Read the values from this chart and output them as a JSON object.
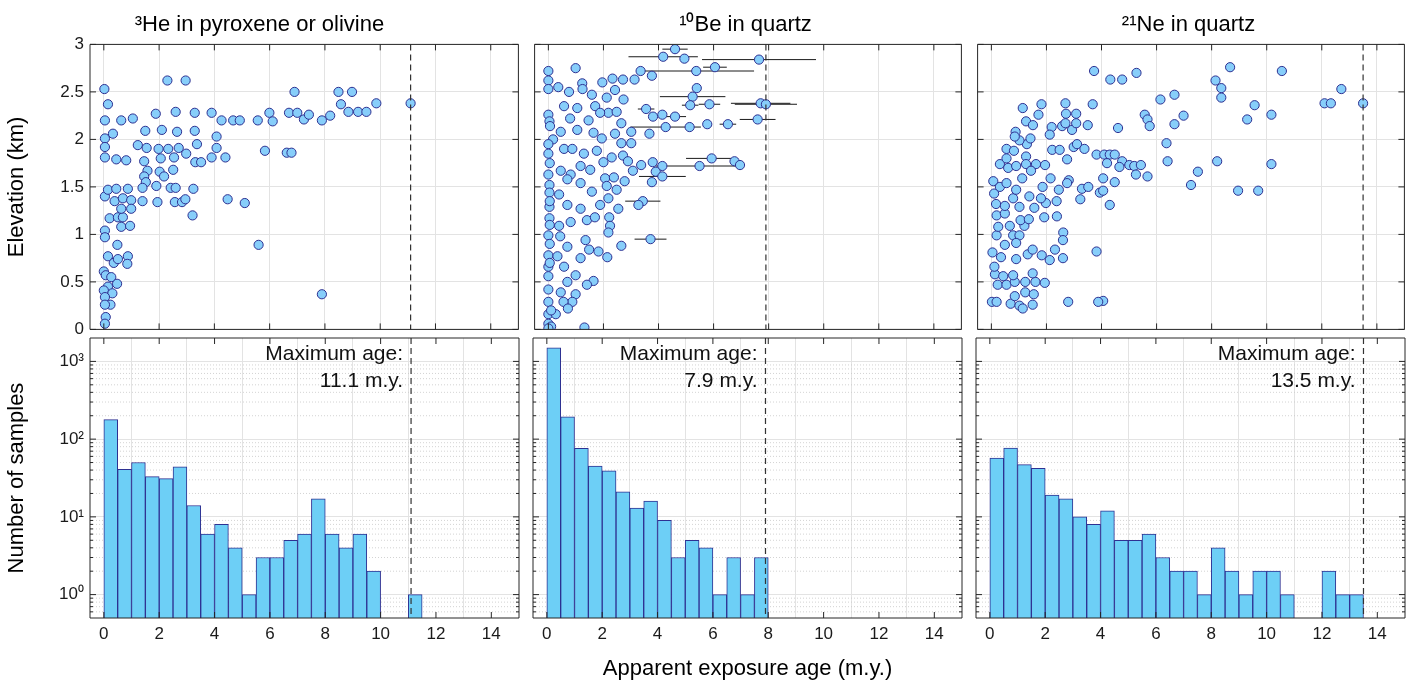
{
  "chart_data": [
    {
      "type": "scatter",
      "title": "³He in pyroxene or olivine",
      "ylabel": "Elevation (km)",
      "color": "#87cefa",
      "marker": "circle",
      "grid": true,
      "tick_labels": "y",
      "xlim": [
        -0.5,
        15
      ],
      "xticks": [
        0,
        2,
        4,
        6,
        8,
        10,
        12,
        14
      ],
      "ylim": [
        0,
        3
      ],
      "yticks": [
        0,
        0.5,
        1,
        1.5,
        2,
        2.5,
        3
      ],
      "ref_lines": [
        {
          "axis": "x",
          "value": 11.1,
          "line_style": "dashed"
        }
      ],
      "x": [
        2.3,
        2.96,
        6.9,
        8.49,
        8.98,
        9.86,
        11.1,
        8.58,
        0.02,
        0.15,
        0.04,
        0.63,
        1.05,
        1.88,
        2.6,
        3.29,
        3.9,
        4.26,
        4.68,
        4.92,
        5.57,
        5.99,
        6.11,
        6.7,
        7,
        7.24,
        7.42,
        7.89,
        8.19,
        8.85,
        9.2,
        9.5,
        0.04,
        0.33,
        1.5,
        2.1,
        2.65,
        3.29,
        4.08,
        4.08,
        0.04,
        0.04,
        0.45,
        0.81,
        1.23,
        1.55,
        1.98,
        2.33,
        2.71,
        3.37,
        3.31,
        3.52,
        3.9,
        4.4,
        5.83,
        6.62,
        6.79,
        1.46,
        2.06,
        2.54,
        2.98,
        1.58,
        2.02,
        2.51,
        2.18,
        1.46,
        1.52,
        1.4,
        1.9,
        2.42,
        2.6,
        3.24,
        0.04,
        0.15,
        0.45,
        0.87,
        0.39,
        0.69,
        0.99,
        1.4,
        1.94,
        2.57,
        2.83,
        2.95,
        4.48,
        5.1,
        3.21,
        0.21,
        0.51,
        0.69,
        0.63,
        0.95,
        0.63,
        0.99,
        0.04,
        0.04,
        5.6,
        0.49,
        0.15,
        0.36,
        0.51,
        0.87,
        0.85,
        0,
        0.07,
        0.27,
        0.48,
        0.15,
        0,
        0.31,
        0.04,
        0.24,
        0.04,
        0.07,
        0.04,
        7.89
      ],
      "values": [
        2.62,
        2.62,
        2.5,
        2.5,
        2.5,
        2.38,
        2.38,
        2.37,
        2.53,
        2.37,
        2.2,
        2.2,
        2.22,
        2.27,
        2.29,
        2.28,
        2.28,
        2.2,
        2.2,
        2.2,
        2.2,
        2.28,
        2.19,
        2.28,
        2.28,
        2.21,
        2.26,
        2.2,
        2.25,
        2.29,
        2.29,
        2.29,
        2.01,
        2.06,
        2.09,
        2.1,
        2.08,
        2.09,
        2.03,
        1.91,
        1.92,
        1.81,
        1.79,
        1.78,
        1.94,
        1.91,
        1.9,
        1.9,
        1.91,
        1.95,
        1.76,
        1.76,
        1.81,
        1.81,
        1.88,
        1.86,
        1.86,
        1.77,
        1.8,
        1.81,
        1.85,
        1.67,
        1.66,
        1.68,
        1.61,
        1.61,
        1.55,
        1.49,
        1.51,
        1.49,
        1.49,
        1.48,
        1.4,
        1.47,
        1.48,
        1.48,
        1.35,
        1.38,
        1.36,
        1.35,
        1.34,
        1.34,
        1.34,
        1.37,
        1.37,
        1.33,
        1.2,
        1.17,
        1.18,
        1.18,
        1.08,
        1.09,
        1.27,
        1.27,
        1.04,
        0.97,
        0.89,
        0.89,
        0.77,
        0.7,
        0.74,
        0.77,
        0.69,
        0.61,
        0.57,
        0.55,
        0.48,
        0.45,
        0.41,
        0.38,
        0.34,
        0.26,
        0.26,
        0.13,
        0.06,
        0.37
      ]
    },
    {
      "type": "scatter",
      "title": "¹⁰Be in quartz",
      "color": "#87cefa",
      "marker": "circle",
      "grid": true,
      "tick_labels": false,
      "xlim": [
        -0.5,
        15
      ],
      "xticks": [
        0,
        2,
        4,
        6,
        8,
        10,
        12,
        14
      ],
      "ylim": [
        0,
        3
      ],
      "yticks": [
        0,
        0.5,
        1,
        1.5,
        2,
        2.5,
        3
      ],
      "ref_lines": [
        {
          "axis": "x",
          "value": 7.9,
          "line_style": "dashed"
        }
      ],
      "x": [
        4.6,
        4.17,
        4.94,
        7.65,
        6.05,
        5.37,
        3.35,
        3.76,
        5.39,
        5.24,
        5.85,
        5.15,
        7.71,
        7.9,
        7.6,
        6.52,
        5.77,
        5.13,
        4.6,
        4.14,
        3.55,
        3.8,
        4.26,
        3.67,
        5.93,
        6.76,
        6.96,
        5.49,
        3.79,
        4.14,
        3.9,
        4.14,
        3.76,
        3.43,
        3.27,
        3.71,
        2.65,
        1.31,
        0,
        0,
        0,
        0.99,
        0.36,
        0.75,
        1.23,
        1.24,
        1.96,
        2.33,
        2.71,
        3.13,
        2.42,
        1.58,
        2.12,
        2.73,
        0.57,
        1.05,
        1.7,
        2.18,
        2.48,
        0,
        0.04,
        0.06,
        0.79,
        1.46,
        1.88,
        0.45,
        1.05,
        1.64,
        2.42,
        2.65,
        3.01,
        1.94,
        2.65,
        3.01,
        0.17,
        0,
        0.57,
        0.87,
        0,
        1.29,
        1.76,
        2.3,
        2.71,
        2.89,
        3.37,
        2,
        1.17,
        0.45,
        0,
        0.81,
        1.52,
        2.06,
        2.38,
        2.77,
        3.07,
        0.04,
        0.69,
        1.17,
        1.58,
        2.12,
        2.48,
        2.18,
        2.54,
        0.04,
        0.39,
        0.04,
        0.69,
        1.17,
        1.88,
        1.4,
        1.69,
        2.21,
        2.24,
        2.18,
        0.04,
        0.39,
        0.81,
        0,
        0.43,
        1.35,
        0.69,
        1.48,
        1.82,
        2.14,
        1.17,
        0,
        0.33,
        0.57,
        0,
        0.99,
        1.64,
        1.4,
        0,
        0.69,
        0,
        0.45,
        0.99,
        0.87,
        0.55,
        0.71,
        0,
        0,
        0.27,
        0,
        0.1,
        0,
        0.05,
        0.05,
        0.05,
        0.05,
        0.1,
        0.05
      ],
      "values": [
        2.95,
        2.87,
        2.85,
        2.84,
        2.76,
        2.72,
        2.72,
        2.67,
        2.54,
        2.45,
        2.37,
        2.36,
        2.38,
        2.37,
        2.21,
        2.16,
        2.16,
        2.13,
        2.24,
        2.26,
        2.32,
        2.24,
        2.13,
        2.06,
        1.8,
        1.77,
        1.73,
        1.72,
        1.76,
        1.72,
        1.66,
        1.61,
        1.55,
        1.35,
        1.31,
        0.95,
        0.88,
        0.02,
        2.72,
        2.62,
        2.53,
        2.75,
        2.55,
        2.5,
        2.59,
        2.53,
        2.6,
        2.64,
        2.63,
        2.63,
        2.52,
        2.47,
        2.44,
        2.42,
        2.35,
        2.33,
        2.35,
        2.28,
        2.29,
        2.26,
        2.19,
        2.14,
        2.22,
        2.2,
        2.28,
        2.08,
        2.1,
        2.07,
        2.06,
        2.17,
        2.08,
        2.01,
        1.96,
        1.96,
        2,
        1.95,
        1.9,
        1.9,
        1.85,
        1.85,
        1.88,
        1.81,
        1.83,
        1.77,
        1.73,
        1.76,
        1.72,
        1.67,
        1.63,
        1.63,
        1.68,
        1.59,
        1.6,
        1.56,
        1.67,
        1.52,
        1.58,
        1.54,
        1.45,
        1.51,
        1.47,
        1.38,
        1.27,
        1.44,
        1.42,
        1.29,
        1.31,
        1.27,
        1.31,
        1.15,
        1.18,
        1.18,
        1.09,
        1.02,
        1.17,
        1.09,
        1.13,
        0.99,
        0.98,
        0.94,
        0.87,
        0.84,
        0.82,
        0.76,
        0.75,
        0.78,
        0.77,
        0.66,
        0.66,
        0.57,
        0.51,
        0.47,
        0.56,
        0.5,
        0.42,
        0.39,
        0.37,
        0.29,
        0.29,
        0.22,
        0.29,
        0.16,
        0.16,
        0.06,
        0.03,
        0.01,
        0.9,
        1.1,
        1.35,
        1.75,
        0.2,
        0.7
      ],
      "xerrors": [
        0.46,
        1.26,
        null,
        2.07,
        0.43,
        2.1,
        null,
        null,
        null,
        1.19,
        0.39,
        0.3,
        1.08,
        1.13,
        0.65,
        0.3,
        null,
        null,
        0.4,
        null,
        0.3,
        null,
        1.28,
        null,
        0.93,
        null,
        null,
        1.6,
        null,
        null,
        null,
        0.85,
        null,
        0.64,
        null,
        0.58,
        null,
        null,
        null,
        null,
        null,
        null,
        null,
        null,
        null,
        null,
        null,
        null,
        null,
        null,
        null,
        null,
        null,
        null,
        null,
        null,
        null,
        null,
        null,
        null,
        null,
        null,
        null,
        null,
        null,
        null,
        null,
        null,
        null,
        null,
        null,
        null,
        null,
        null,
        null,
        null,
        null,
        null,
        null,
        null,
        null,
        null,
        null,
        null,
        null,
        null,
        null,
        null,
        null,
        null,
        null,
        null,
        null,
        null,
        null,
        null,
        null,
        null,
        null,
        null,
        null,
        null,
        null,
        null,
        null,
        null,
        null,
        null,
        null,
        null,
        null,
        null,
        null,
        null,
        null,
        null,
        null,
        null,
        null,
        null,
        null,
        null,
        null,
        null,
        null,
        null,
        null,
        null,
        null,
        null,
        null,
        null,
        null,
        null,
        null,
        null,
        null,
        null,
        null,
        null,
        null,
        null,
        null,
        null,
        null,
        null,
        null,
        null,
        null,
        null,
        null,
        null
      ]
    },
    {
      "type": "scatter",
      "title": "²¹Ne in quartz",
      "color": "#87cefa",
      "marker": "circle",
      "grid": true,
      "tick_labels": false,
      "xlim": [
        -0.5,
        15
      ],
      "xticks": [
        0,
        2,
        4,
        6,
        8,
        10,
        12,
        14
      ],
      "ylim": [
        0,
        3
      ],
      "yticks": [
        0,
        0.5,
        1,
        1.5,
        2,
        2.5,
        3
      ],
      "ref_lines": [
        {
          "axis": "x",
          "value": 13.5,
          "line_style": "dashed"
        }
      ],
      "x": [
        3.73,
        4.32,
        4.75,
        5.27,
        8.67,
        10.55,
        8.14,
        8.35,
        8.35,
        6.65,
        6.14,
        12.71,
        12.1,
        12.33,
        13.5,
        9.56,
        10.17,
        9.29,
        6.98,
        6.65,
        5.57,
        5.67,
        5.75,
        4.6,
        6.36,
        6.4,
        8.2,
        10.17,
        7.5,
        7.25,
        8.96,
        9.69,
        3.82,
        4.06,
        3.88,
        2.79,
        0.02,
        0.19,
        0.7,
        1.02,
        1.14,
        1.5,
        0.85,
        1.23,
        1.54,
        0.23,
        0.55,
        0.85,
        1.23,
        1.6,
        1.94,
        0.13,
        0.43,
        0.79,
        1.5,
        0.04,
        0.35,
        0.11,
        0.9,
        1.32,
        1.5,
        1.83,
        2.12,
        2.31,
        2.6,
        2.61,
        2.6,
        0.19,
        0.49,
        0.79,
        1.02,
        0.9,
        0.25,
        0.67,
        1.2,
        0.19,
        0.49,
        1.06,
        1.36,
        1.92,
        2.38,
        0.17,
        0.49,
        1.02,
        1.56,
        1.98,
        2.37,
        4.3,
        0.07,
        0.1,
        0.31,
        0.55,
        0.79,
        0.9,
        1.38,
        1.8,
        1.86,
        2.15,
        2.45,
        2.81,
        3.23,
        3.29,
        3.52,
        3.94,
        4.06,
        4.48,
        4.06,
        0.31,
        0.55,
        0.61,
        0.9,
        1.26,
        1.12,
        1.62,
        1.95,
        0.55,
        0.82,
        1.26,
        1.44,
        1.29,
        1.42,
        1.02,
        0.88,
        0.85,
        1.26,
        1.51,
        1.14,
        1.71,
        1.82,
        2.19,
        2.21,
        2.48,
        2.12,
        2.57,
        2.69,
        2.69,
        2.71,
        2.93,
        3.08,
        3.08,
        3.5,
        3.68,
        2.99,
        3.11,
        3.38,
        3.82,
        4.1,
        4.3,
        4.48,
        4.2,
        4.75,
        4.65,
        5.01,
        5.19,
        5.43,
        5.25,
        5.67,
        2.75,
        2.75
      ],
      "values": [
        2.72,
        2.63,
        2.63,
        2.7,
        2.76,
        2.72,
        2.62,
        2.54,
        2.44,
        2.47,
        2.42,
        2.53,
        2.38,
        2.38,
        2.38,
        2.36,
        2.26,
        2.21,
        2.25,
        2.16,
        2.26,
        2.21,
        2.14,
        2.12,
        1.96,
        1.77,
        1.77,
        1.74,
        1.66,
        1.52,
        1.46,
        1.46,
        0.82,
        0.3,
        0.29,
        0.29,
        0.29,
        0.29,
        0.27,
        0.25,
        0.22,
        0.26,
        0.35,
        0.39,
        0.37,
        0.47,
        0.47,
        0.5,
        0.5,
        0.5,
        0.49,
        0.58,
        0.56,
        0.57,
        0.59,
        0.81,
        0.76,
        0.66,
        0.74,
        0.79,
        0.84,
        0.78,
        0.73,
        0.84,
        0.75,
        1.02,
        0.94,
        0.99,
        0.89,
        0.99,
        0.99,
        0.91,
        1.08,
        1.09,
        1.09,
        1.2,
        1.22,
        1.15,
        1.16,
        1.18,
        1.19,
        1.32,
        1.3,
        1.29,
        1.28,
        1.33,
        1.35,
        1.31,
        1.56,
        1.43,
        1.5,
        1.54,
        1.38,
        1.47,
        1.4,
        1.38,
        1.5,
        1.59,
        1.47,
        1.57,
        1.37,
        1.48,
        1.5,
        1.44,
        1.46,
        1.55,
        1.59,
        1.74,
        1.8,
        1.7,
        1.72,
        1.82,
        1.59,
        1.74,
        1.73,
        1.9,
        1.88,
        1.74,
        1.67,
        1.95,
        2.01,
        1.99,
        2.08,
        2.03,
        2.19,
        2.15,
        2.33,
        2.26,
        2.37,
        2.13,
        1.89,
        1.89,
        2.05,
        2.14,
        2.17,
        2.38,
        2.27,
        2.1,
        2.27,
        2.17,
        2.15,
        2.37,
        1.92,
        1.95,
        1.9,
        1.84,
        1.84,
        1.84,
        1.84,
        1.75,
        1.77,
        1.71,
        1.73,
        1.72,
        1.73,
        1.63,
        1.61,
        1.79,
        1.54
      ]
    },
    {
      "type": "histogram",
      "ylabel": "Number of samples",
      "color": "#6dcff6",
      "grid": true,
      "log": true,
      "xlim": [
        -0.5,
        15
      ],
      "xticks": [
        0,
        2,
        4,
        6,
        8,
        10,
        12,
        14
      ],
      "ylim": [
        0.5,
        2000
      ],
      "yticks": [
        {
          "value": 0.6,
          "label": null
        },
        {
          "value": 0.7,
          "label": null
        },
        {
          "value": 0.8,
          "label": null
        },
        {
          "value": 0.9,
          "label": null
        },
        {
          "value": 1,
          "label": "10⁰"
        },
        {
          "value": 2,
          "label": null
        },
        {
          "value": 3,
          "label": null
        },
        {
          "value": 4,
          "label": null
        },
        {
          "value": 5,
          "label": null
        },
        {
          "value": 6,
          "label": null
        },
        {
          "value": 7,
          "label": null
        },
        {
          "value": 8,
          "label": null
        },
        {
          "value": 9,
          "label": null
        },
        {
          "value": 10,
          "label": "10¹"
        },
        {
          "value": 20,
          "label": null
        },
        {
          "value": 30,
          "label": null
        },
        {
          "value": 40,
          "label": null
        },
        {
          "value": 50,
          "label": null
        },
        {
          "value": 60,
          "label": null
        },
        {
          "value": 70,
          "label": null
        },
        {
          "value": 80,
          "label": null
        },
        {
          "value": 90,
          "label": null
        },
        {
          "value": 100,
          "label": "10²"
        },
        {
          "value": 200,
          "label": null
        },
        {
          "value": 300,
          "label": null
        },
        {
          "value": 400,
          "label": null
        },
        {
          "value": 500,
          "label": null
        },
        {
          "value": 600,
          "label": null
        },
        {
          "value": 700,
          "label": null
        },
        {
          "value": 800,
          "label": null
        },
        {
          "value": 900,
          "label": null
        },
        {
          "value": 1000,
          "label": "10³"
        }
      ],
      "ref_lines": [
        {
          "axis": "x",
          "value": 11.1,
          "line_style": "dashed",
          "label": "Maximum age:\n11.1 m.y."
        }
      ],
      "bins": [
        0,
        0.5,
        1,
        1.5,
        2,
        2.5,
        3,
        3.5,
        4,
        4.5,
        5,
        5.5,
        6,
        6.5,
        7,
        7.5,
        8,
        8.5,
        9,
        9.5,
        10,
        10.5,
        11,
        11.5
      ],
      "values": [
        178,
        41,
        50,
        33,
        31,
        44,
        14,
        6,
        8,
        4,
        1,
        3,
        3,
        5,
        6,
        17,
        6,
        4,
        6,
        2,
        null,
        null,
        1
      ]
    },
    {
      "type": "histogram",
      "xlabel": "Apparent exposure age (m.y.)",
      "color": "#6dcff6",
      "grid": true,
      "log": true,
      "tick_labels": "x",
      "xlim": [
        -0.5,
        15
      ],
      "xticks": [
        0,
        2,
        4,
        6,
        8,
        10,
        12,
        14
      ],
      "ylim": [
        0.5,
        2000
      ],
      "yticks": [
        {
          "value": 0.6,
          "label": null
        },
        {
          "value": 0.7,
          "label": null
        },
        {
          "value": 0.8,
          "label": null
        },
        {
          "value": 0.9,
          "label": null
        },
        {
          "value": 1,
          "label": null
        },
        {
          "value": 2,
          "label": null
        },
        {
          "value": 3,
          "label": null
        },
        {
          "value": 4,
          "label": null
        },
        {
          "value": 5,
          "label": null
        },
        {
          "value": 6,
          "label": null
        },
        {
          "value": 7,
          "label": null
        },
        {
          "value": 8,
          "label": null
        },
        {
          "value": 9,
          "label": null
        },
        {
          "value": 10,
          "label": null
        },
        {
          "value": 20,
          "label": null
        },
        {
          "value": 30,
          "label": null
        },
        {
          "value": 40,
          "label": null
        },
        {
          "value": 50,
          "label": null
        },
        {
          "value": 60,
          "label": null
        },
        {
          "value": 70,
          "label": null
        },
        {
          "value": 80,
          "label": null
        },
        {
          "value": 90,
          "label": null
        },
        {
          "value": 100,
          "label": null
        },
        {
          "value": 200,
          "label": null
        },
        {
          "value": 300,
          "label": null
        },
        {
          "value": 400,
          "label": null
        },
        {
          "value": 500,
          "label": null
        },
        {
          "value": 600,
          "label": null
        },
        {
          "value": 700,
          "label": null
        },
        {
          "value": 800,
          "label": null
        },
        {
          "value": 900,
          "label": null
        },
        {
          "value": 1000,
          "label": null
        }
      ],
      "ref_lines": [
        {
          "axis": "x",
          "value": 7.9,
          "line_style": "dashed",
          "label": "Maximum age:\n7.9 m.y."
        }
      ],
      "bins": [
        0,
        0.5,
        1,
        1.5,
        2,
        2.5,
        3,
        3.5,
        4,
        4.5,
        5,
        5.5,
        6,
        6.5,
        7,
        7.5,
        8
      ],
      "values": [
        1500,
        194,
        76,
        45,
        39,
        21,
        13,
        16,
        9,
        3,
        5,
        4,
        1,
        3,
        1,
        3
      ]
    },
    {
      "type": "histogram",
      "color": "#6dcff6",
      "grid": true,
      "log": true,
      "tick_labels": "x",
      "xlim": [
        -0.5,
        15
      ],
      "xticks": [
        0,
        2,
        4,
        6,
        8,
        10,
        12,
        14
      ],
      "ylim": [
        0.5,
        2000
      ],
      "yticks": [
        {
          "value": 0.6,
          "label": null
        },
        {
          "value": 0.7,
          "label": null
        },
        {
          "value": 0.8,
          "label": null
        },
        {
          "value": 0.9,
          "label": null
        },
        {
          "value": 1,
          "label": null
        },
        {
          "value": 2,
          "label": null
        },
        {
          "value": 3,
          "label": null
        },
        {
          "value": 4,
          "label": null
        },
        {
          "value": 5,
          "label": null
        },
        {
          "value": 6,
          "label": null
        },
        {
          "value": 7,
          "label": null
        },
        {
          "value": 8,
          "label": null
        },
        {
          "value": 9,
          "label": null
        },
        {
          "value": 10,
          "label": null
        },
        {
          "value": 20,
          "label": null
        },
        {
          "value": 30,
          "label": null
        },
        {
          "value": 40,
          "label": null
        },
        {
          "value": 50,
          "label": null
        },
        {
          "value": 60,
          "label": null
        },
        {
          "value": 70,
          "label": null
        },
        {
          "value": 80,
          "label": null
        },
        {
          "value": 90,
          "label": null
        },
        {
          "value": 100,
          "label": null
        },
        {
          "value": 200,
          "label": null
        },
        {
          "value": 300,
          "label": null
        },
        {
          "value": 400,
          "label": null
        },
        {
          "value": 500,
          "label": null
        },
        {
          "value": 600,
          "label": null
        },
        {
          "value": 700,
          "label": null
        },
        {
          "value": 800,
          "label": null
        },
        {
          "value": 900,
          "label": null
        },
        {
          "value": 1000,
          "label": null
        }
      ],
      "ref_lines": [
        {
          "axis": "x",
          "value": 13.5,
          "line_style": "dashed",
          "label": "Maximum age:\n13.5 m.y."
        }
      ],
      "bins": [
        0,
        0.5,
        1,
        1.5,
        2,
        2.5,
        3,
        3.5,
        4,
        4.5,
        5,
        5.5,
        6,
        6.5,
        7,
        7.5,
        8,
        8.5,
        9,
        9.5,
        10,
        10.5,
        11,
        11.5,
        12,
        12.5,
        13,
        13.5
      ],
      "values": [
        57,
        77,
        47,
        42,
        19,
        17,
        10,
        8,
        12,
        5,
        5,
        6,
        3,
        2,
        2,
        1,
        4,
        2,
        1,
        2,
        2,
        1,
        null,
        null,
        2,
        1,
        1
      ]
    }
  ]
}
